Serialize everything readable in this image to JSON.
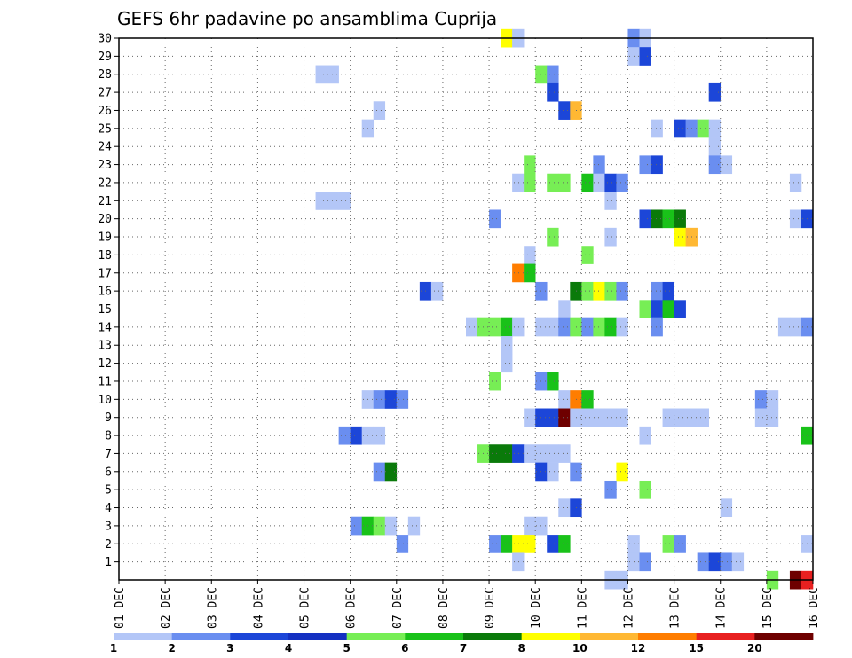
{
  "chart_data": {
    "type": "heatmap",
    "title": "GEFS 6hr padavine po ansamblima Cuprija",
    "xlabel": "",
    "ylabel": "",
    "x_tick_labels": [
      "01 DEC",
      "02 DEC",
      "03 DEC",
      "04 DEC",
      "05 DEC",
      "06 DEC",
      "07 DEC",
      "08 DEC",
      "09 DEC",
      "10 DEC",
      "11 DEC",
      "12 DEC",
      "13 DEC",
      "14 DEC",
      "15 DEC",
      "16 DEC"
    ],
    "y_tick_labels": [
      "1",
      "2",
      "3",
      "4",
      "5",
      "6",
      "7",
      "8",
      "9",
      "10",
      "11",
      "12",
      "13",
      "14",
      "15",
      "16",
      "17",
      "18",
      "19",
      "20",
      "21",
      "22",
      "23",
      "24",
      "25",
      "26",
      "27",
      "28",
      "29",
      "30"
    ],
    "xlim": [
      0,
      60
    ],
    "ylim": [
      0,
      30
    ],
    "grid": true,
    "legend": {
      "position": "bottom",
      "levels": [
        "1",
        "2",
        "3",
        "4",
        "5",
        "6",
        "7",
        "8",
        "10",
        "12",
        "15",
        "20"
      ],
      "colors": [
        "#b3c6f7",
        "#6a8ef0",
        "#1c46d8",
        "#1430c2",
        "#77ee55",
        "#19c219",
        "#0a7a0a",
        "#ffff00",
        "#ffb833",
        "#ff7d00",
        "#e82020",
        "#6e0000"
      ]
    },
    "cells": [
      {
        "x": 34,
        "y": 30,
        "v": 8
      },
      {
        "x": 35,
        "y": 30,
        "v": 1
      },
      {
        "x": 45,
        "y": 30,
        "v": 2
      },
      {
        "x": 46,
        "y": 30,
        "v": 1
      },
      {
        "x": 45,
        "y": 29,
        "v": 1
      },
      {
        "x": 46,
        "y": 29,
        "v": 3
      },
      {
        "x": 18,
        "y": 28,
        "v": 1
      },
      {
        "x": 19,
        "y": 28,
        "v": 1
      },
      {
        "x": 37,
        "y": 28,
        "v": 5
      },
      {
        "x": 38,
        "y": 28,
        "v": 2
      },
      {
        "x": 38,
        "y": 27,
        "v": 3
      },
      {
        "x": 52,
        "y": 27,
        "v": 3
      },
      {
        "x": 23,
        "y": 26,
        "v": 1
      },
      {
        "x": 39,
        "y": 26,
        "v": 3
      },
      {
        "x": 40,
        "y": 26,
        "v": 10
      },
      {
        "x": 22,
        "y": 25,
        "v": 1
      },
      {
        "x": 47,
        "y": 25,
        "v": 1
      },
      {
        "x": 49,
        "y": 25,
        "v": 3
      },
      {
        "x": 50,
        "y": 25,
        "v": 2
      },
      {
        "x": 51,
        "y": 25,
        "v": 5
      },
      {
        "x": 52,
        "y": 25,
        "v": 1
      },
      {
        "x": 52,
        "y": 24,
        "v": 1
      },
      {
        "x": 36,
        "y": 23,
        "v": 5
      },
      {
        "x": 42,
        "y": 23,
        "v": 2
      },
      {
        "x": 46,
        "y": 23,
        "v": 2
      },
      {
        "x": 47,
        "y": 23,
        "v": 3
      },
      {
        "x": 52,
        "y": 23,
        "v": 2
      },
      {
        "x": 53,
        "y": 23,
        "v": 1
      },
      {
        "x": 35,
        "y": 22,
        "v": 1
      },
      {
        "x": 36,
        "y": 22,
        "v": 5
      },
      {
        "x": 38,
        "y": 22,
        "v": 5
      },
      {
        "x": 39,
        "y": 22,
        "v": 5
      },
      {
        "x": 41,
        "y": 22,
        "v": 6
      },
      {
        "x": 42,
        "y": 22,
        "v": 1
      },
      {
        "x": 43,
        "y": 22,
        "v": 3
      },
      {
        "x": 44,
        "y": 22,
        "v": 2
      },
      {
        "x": 59,
        "y": 22,
        "v": 1
      },
      {
        "x": 18,
        "y": 21,
        "v": 1
      },
      {
        "x": 19,
        "y": 21,
        "v": 1
      },
      {
        "x": 20,
        "y": 21,
        "v": 1
      },
      {
        "x": 43,
        "y": 21,
        "v": 1
      },
      {
        "x": 33,
        "y": 20,
        "v": 2
      },
      {
        "x": 46,
        "y": 20,
        "v": 3
      },
      {
        "x": 47,
        "y": 20,
        "v": 7
      },
      {
        "x": 48,
        "y": 20,
        "v": 6
      },
      {
        "x": 49,
        "y": 20,
        "v": 7
      },
      {
        "x": 59,
        "y": 20,
        "v": 1
      },
      {
        "x": 60,
        "y": 20,
        "v": 3
      },
      {
        "x": 38,
        "y": 19,
        "v": 5
      },
      {
        "x": 43,
        "y": 19,
        "v": 1
      },
      {
        "x": 49,
        "y": 19,
        "v": 8
      },
      {
        "x": 50,
        "y": 19,
        "v": 10
      },
      {
        "x": 36,
        "y": 18,
        "v": 1
      },
      {
        "x": 41,
        "y": 18,
        "v": 5
      },
      {
        "x": 35,
        "y": 17,
        "v": 12
      },
      {
        "x": 36,
        "y": 17,
        "v": 6
      },
      {
        "x": 27,
        "y": 16,
        "v": 3
      },
      {
        "x": 28,
        "y": 16,
        "v": 1
      },
      {
        "x": 37,
        "y": 16,
        "v": 2
      },
      {
        "x": 40,
        "y": 16,
        "v": 7
      },
      {
        "x": 41,
        "y": 16,
        "v": 5
      },
      {
        "x": 42,
        "y": 16,
        "v": 8
      },
      {
        "x": 43,
        "y": 16,
        "v": 5
      },
      {
        "x": 44,
        "y": 16,
        "v": 2
      },
      {
        "x": 47,
        "y": 16,
        "v": 2
      },
      {
        "x": 48,
        "y": 16,
        "v": 3
      },
      {
        "x": 39,
        "y": 15,
        "v": 1
      },
      {
        "x": 46,
        "y": 15,
        "v": 5
      },
      {
        "x": 47,
        "y": 15,
        "v": 3
      },
      {
        "x": 48,
        "y": 15,
        "v": 6
      },
      {
        "x": 49,
        "y": 15,
        "v": 3
      },
      {
        "x": 31,
        "y": 14,
        "v": 1
      },
      {
        "x": 32,
        "y": 14,
        "v": 5
      },
      {
        "x": 33,
        "y": 14,
        "v": 5
      },
      {
        "x": 34,
        "y": 14,
        "v": 6
      },
      {
        "x": 35,
        "y": 14,
        "v": 1
      },
      {
        "x": 37,
        "y": 14,
        "v": 1
      },
      {
        "x": 38,
        "y": 14,
        "v": 1
      },
      {
        "x": 39,
        "y": 14,
        "v": 2
      },
      {
        "x": 40,
        "y": 14,
        "v": 5
      },
      {
        "x": 41,
        "y": 14,
        "v": 2
      },
      {
        "x": 42,
        "y": 14,
        "v": 5
      },
      {
        "x": 43,
        "y": 14,
        "v": 6
      },
      {
        "x": 44,
        "y": 14,
        "v": 1
      },
      {
        "x": 47,
        "y": 14,
        "v": 2
      },
      {
        "x": 58,
        "y": 14,
        "v": 1
      },
      {
        "x": 59,
        "y": 14,
        "v": 1
      },
      {
        "x": 60,
        "y": 14,
        "v": 2
      },
      {
        "x": 34,
        "y": 13,
        "v": 1
      },
      {
        "x": 34,
        "y": 12,
        "v": 1
      },
      {
        "x": 33,
        "y": 11,
        "v": 5
      },
      {
        "x": 37,
        "y": 11,
        "v": 2
      },
      {
        "x": 38,
        "y": 11,
        "v": 6
      },
      {
        "x": 22,
        "y": 10,
        "v": 1
      },
      {
        "x": 23,
        "y": 10,
        "v": 2
      },
      {
        "x": 24,
        "y": 10,
        "v": 3
      },
      {
        "x": 25,
        "y": 10,
        "v": 2
      },
      {
        "x": 39,
        "y": 10,
        "v": 1
      },
      {
        "x": 40,
        "y": 10,
        "v": 12
      },
      {
        "x": 41,
        "y": 10,
        "v": 6
      },
      {
        "x": 56,
        "y": 10,
        "v": 2
      },
      {
        "x": 57,
        "y": 10,
        "v": 1
      },
      {
        "x": 36,
        "y": 9,
        "v": 1
      },
      {
        "x": 37,
        "y": 9,
        "v": 3
      },
      {
        "x": 38,
        "y": 9,
        "v": 3
      },
      {
        "x": 39,
        "y": 9,
        "v": 20
      },
      {
        "x": 40,
        "y": 9,
        "v": 1
      },
      {
        "x": 41,
        "y": 9,
        "v": 1
      },
      {
        "x": 42,
        "y": 9,
        "v": 1
      },
      {
        "x": 43,
        "y": 9,
        "v": 1
      },
      {
        "x": 44,
        "y": 9,
        "v": 1
      },
      {
        "x": 48,
        "y": 9,
        "v": 1
      },
      {
        "x": 49,
        "y": 9,
        "v": 1
      },
      {
        "x": 50,
        "y": 9,
        "v": 1
      },
      {
        "x": 51,
        "y": 9,
        "v": 1
      },
      {
        "x": 56,
        "y": 9,
        "v": 1
      },
      {
        "x": 57,
        "y": 9,
        "v": 1
      },
      {
        "x": 20,
        "y": 8,
        "v": 2
      },
      {
        "x": 21,
        "y": 8,
        "v": 3
      },
      {
        "x": 22,
        "y": 8,
        "v": 1
      },
      {
        "x": 23,
        "y": 8,
        "v": 1
      },
      {
        "x": 46,
        "y": 8,
        "v": 1
      },
      {
        "x": 60,
        "y": 8,
        "v": 6
      },
      {
        "x": 32,
        "y": 7,
        "v": 5
      },
      {
        "x": 33,
        "y": 7,
        "v": 7
      },
      {
        "x": 34,
        "y": 7,
        "v": 7
      },
      {
        "x": 35,
        "y": 7,
        "v": 3
      },
      {
        "x": 36,
        "y": 7,
        "v": 1
      },
      {
        "x": 37,
        "y": 7,
        "v": 1
      },
      {
        "x": 38,
        "y": 7,
        "v": 1
      },
      {
        "x": 39,
        "y": 7,
        "v": 1
      },
      {
        "x": 23,
        "y": 6,
        "v": 2
      },
      {
        "x": 24,
        "y": 6,
        "v": 7
      },
      {
        "x": 37,
        "y": 6,
        "v": 3
      },
      {
        "x": 38,
        "y": 6,
        "v": 1
      },
      {
        "x": 40,
        "y": 6,
        "v": 2
      },
      {
        "x": 44,
        "y": 6,
        "v": 8
      },
      {
        "x": 43,
        "y": 5,
        "v": 2
      },
      {
        "x": 46,
        "y": 5,
        "v": 5
      },
      {
        "x": 39,
        "y": 4,
        "v": 1
      },
      {
        "x": 40,
        "y": 4,
        "v": 3
      },
      {
        "x": 53,
        "y": 4,
        "v": 1
      },
      {
        "x": 21,
        "y": 3,
        "v": 2
      },
      {
        "x": 22,
        "y": 3,
        "v": 6
      },
      {
        "x": 23,
        "y": 3,
        "v": 5
      },
      {
        "x": 24,
        "y": 3,
        "v": 1
      },
      {
        "x": 26,
        "y": 3,
        "v": 1
      },
      {
        "x": 36,
        "y": 3,
        "v": 1
      },
      {
        "x": 37,
        "y": 3,
        "v": 1
      },
      {
        "x": 25,
        "y": 2,
        "v": 2
      },
      {
        "x": 33,
        "y": 2,
        "v": 2
      },
      {
        "x": 34,
        "y": 2,
        "v": 6
      },
      {
        "x": 35,
        "y": 2,
        "v": 8
      },
      {
        "x": 36,
        "y": 2,
        "v": 8
      },
      {
        "x": 38,
        "y": 2,
        "v": 3
      },
      {
        "x": 39,
        "y": 2,
        "v": 6
      },
      {
        "x": 45,
        "y": 2,
        "v": 1
      },
      {
        "x": 48,
        "y": 2,
        "v": 5
      },
      {
        "x": 49,
        "y": 2,
        "v": 2
      },
      {
        "x": 60,
        "y": 2,
        "v": 1
      },
      {
        "x": 35,
        "y": 1,
        "v": 1
      },
      {
        "x": 45,
        "y": 1,
        "v": 1
      },
      {
        "x": 46,
        "y": 1,
        "v": 2
      },
      {
        "x": 51,
        "y": 1,
        "v": 2
      },
      {
        "x": 52,
        "y": 1,
        "v": 3
      },
      {
        "x": 53,
        "y": 1,
        "v": 2
      },
      {
        "x": 54,
        "y": 1,
        "v": 1
      },
      {
        "x": 43,
        "y": 0,
        "v": 1
      },
      {
        "x": 44,
        "y": 0,
        "v": 1
      },
      {
        "x": 57,
        "y": 0,
        "v": 5
      },
      {
        "x": 59,
        "y": 0,
        "v": 20
      },
      {
        "x": 60,
        "y": 0,
        "v": 15
      }
    ]
  }
}
